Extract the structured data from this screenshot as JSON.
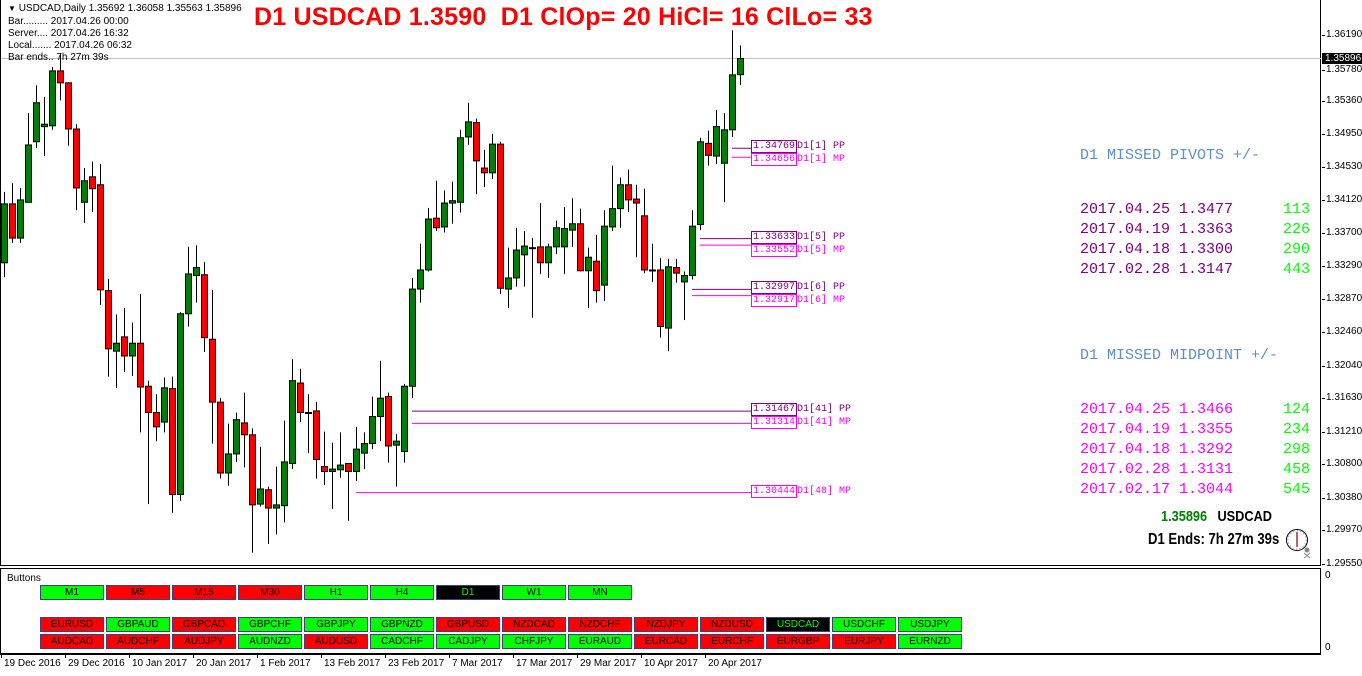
{
  "window": {
    "symbol_line": "USDCAD,Daily  1.35692 1.36058 1.35563 1.35896",
    "info_lines": [
      "Bar......... 2017.04.26 00:00",
      "Server.... 2017.04.26 16:32",
      "Local....... 2017.04.26 06:32",
      "Bar ends.. 7h 27m 39s"
    ]
  },
  "headline": "D1 USDCAD 1.3590  D1 ClOp= 20 HiCl= 16 ClLo= 33",
  "missed_pivots": {
    "header": "D1 MISSED PIVOTS +/-",
    "rows": [
      {
        "date": "2017.04.25",
        "price": "1.3477",
        "diff": "113"
      },
      {
        "date": "2017.04.19",
        "price": "1.3363",
        "diff": "226"
      },
      {
        "date": "2017.04.18",
        "price": "1.3300",
        "diff": "290"
      },
      {
        "date": "2017.02.28",
        "price": "1.3147",
        "diff": "443"
      }
    ]
  },
  "missed_midpoints": {
    "header": "D1 MISSED MIDPOINT +/-",
    "rows": [
      {
        "date": "2017.04.25",
        "price": "1.3466",
        "diff": "124"
      },
      {
        "date": "2017.04.19",
        "price": "1.3355",
        "diff": "234"
      },
      {
        "date": "2017.04.18",
        "price": "1.3292",
        "diff": "298"
      },
      {
        "date": "2017.02.28",
        "price": "1.3131",
        "diff": "458"
      },
      {
        "date": "2017.02.17",
        "price": "1.3044",
        "diff": "545"
      }
    ]
  },
  "bottom_info": {
    "price": "1.35896",
    "symbol": "USDCAD",
    "ends": "D1 Ends: 7h 27m 39s"
  },
  "colors": {
    "bull": "#008000",
    "bear": "#ff0000",
    "pp": "#800080",
    "mp": "#ff00ff",
    "bid_line": "#c0c0c0",
    "title": "#ff0000",
    "price_green": "#008000"
  },
  "subwindow": {
    "title": "Buttons",
    "axis_labels": [
      "0",
      "0"
    ],
    "timeframes": [
      {
        "label": "M1",
        "state": "green"
      },
      {
        "label": "M5",
        "state": "red"
      },
      {
        "label": "M15",
        "state": "red"
      },
      {
        "label": "M30",
        "state": "red"
      },
      {
        "label": "H1",
        "state": "green"
      },
      {
        "label": "H4",
        "state": "green"
      },
      {
        "label": "D1",
        "state": "black"
      },
      {
        "label": "W1",
        "state": "green"
      },
      {
        "label": "MN",
        "state": "green"
      }
    ],
    "pairs_row1": [
      {
        "label": "EURUSD",
        "state": "red"
      },
      {
        "label": "GBPAUD",
        "state": "green"
      },
      {
        "label": "GBPCAD",
        "state": "red"
      },
      {
        "label": "GBPCHF",
        "state": "green"
      },
      {
        "label": "GBPJPY",
        "state": "green"
      },
      {
        "label": "GBPNZD",
        "state": "green"
      },
      {
        "label": "GBPUSD",
        "state": "red"
      },
      {
        "label": "NZDCAD",
        "state": "red"
      },
      {
        "label": "NZDCHF",
        "state": "red"
      },
      {
        "label": "NZDJPY",
        "state": "red"
      },
      {
        "label": "NZDUSD",
        "state": "red"
      },
      {
        "label": "USDCAD",
        "state": "black"
      },
      {
        "label": "USDCHF",
        "state": "green"
      },
      {
        "label": "USDJPY",
        "state": "green"
      }
    ],
    "pairs_row2": [
      {
        "label": "AUDCAD",
        "state": "red"
      },
      {
        "label": "AUDCHF",
        "state": "red"
      },
      {
        "label": "AUDJPY",
        "state": "red"
      },
      {
        "label": "AUDNZD",
        "state": "green"
      },
      {
        "label": "AUDUSD",
        "state": "red"
      },
      {
        "label": "CADCHF",
        "state": "green"
      },
      {
        "label": "CADJPY",
        "state": "green"
      },
      {
        "label": "CHFJPY",
        "state": "green"
      },
      {
        "label": "EURAUD",
        "state": "green"
      },
      {
        "label": "EURCAD",
        "state": "red"
      },
      {
        "label": "EURCHF",
        "state": "red"
      },
      {
        "label": "EURGBP",
        "state": "red"
      },
      {
        "label": "EURJPY",
        "state": "red"
      },
      {
        "label": "EURNZD",
        "state": "green"
      }
    ]
  },
  "chart_data": {
    "type": "candlestick",
    "symbol": "USDCAD",
    "timeframe": "Daily",
    "ylim": [
      1.2951,
      1.3663
    ],
    "grid": false,
    "bid": 1.35896,
    "bid_label": "1.35896",
    "y_ticks": [
      "1.36190",
      "1.35780",
      "1.35360",
      "1.34950",
      "1.34530",
      "1.34120",
      "1.33700",
      "1.33290",
      "1.32870",
      "1.32460",
      "1.32040",
      "1.31630",
      "1.31210",
      "1.30800",
      "1.30380",
      "1.29970",
      "1.29550"
    ],
    "x_ticks": [
      {
        "label": "19 Dec 2016",
        "bar": 0
      },
      {
        "label": "29 Dec 2016",
        "bar": 8
      },
      {
        "label": "10 Jan 2017",
        "bar": 16
      },
      {
        "label": "20 Jan 2017",
        "bar": 24
      },
      {
        "label": "1 Feb 2017",
        "bar": 32
      },
      {
        "label": "13 Feb 2017",
        "bar": 40
      },
      {
        "label": "23 Feb 2017",
        "bar": 48
      },
      {
        "label": "7 Mar 2017",
        "bar": 56
      },
      {
        "label": "17 Mar 2017",
        "bar": 64
      },
      {
        "label": "29 Mar 2017",
        "bar": 72
      },
      {
        "label": "10 Apr 2017",
        "bar": 80
      },
      {
        "label": "20 Apr 2017",
        "bar": 88
      }
    ],
    "ohlc": [
      [
        1.3333,
        1.3422,
        1.3315,
        1.3407
      ],
      [
        1.3407,
        1.3433,
        1.3358,
        1.3364
      ],
      [
        1.3364,
        1.3427,
        1.3358,
        1.3412
      ],
      [
        1.3409,
        1.3521,
        1.3409,
        1.3481
      ],
      [
        1.3485,
        1.3556,
        1.3477,
        1.3534
      ],
      [
        1.3504,
        1.3541,
        1.3467,
        1.3507
      ],
      [
        1.3505,
        1.3579,
        1.35,
        1.3574
      ],
      [
        1.3574,
        1.3596,
        1.3537,
        1.3559
      ],
      [
        1.3559,
        1.356,
        1.348,
        1.3501
      ],
      [
        1.3501,
        1.3507,
        1.3399,
        1.3427
      ],
      [
        1.3409,
        1.3452,
        1.3383,
        1.3436
      ],
      [
        1.3441,
        1.346,
        1.3397,
        1.3426
      ],
      [
        1.3431,
        1.3457,
        1.328,
        1.3299
      ],
      [
        1.3298,
        1.3313,
        1.319,
        1.3225
      ],
      [
        1.3222,
        1.3268,
        1.3176,
        1.3232
      ],
      [
        1.324,
        1.3276,
        1.3196,
        1.3216
      ],
      [
        1.3216,
        1.3258,
        1.3191,
        1.3232
      ],
      [
        1.3232,
        1.3294,
        1.312,
        1.3177
      ],
      [
        1.3178,
        1.3185,
        1.303,
        1.3145
      ],
      [
        1.3145,
        1.3168,
        1.3109,
        1.3127
      ],
      [
        1.3133,
        1.3189,
        1.312,
        1.3176
      ],
      [
        1.3175,
        1.319,
        1.3019,
        1.3042
      ],
      [
        1.3042,
        1.3271,
        1.3034,
        1.3269
      ],
      [
        1.3269,
        1.3353,
        1.3253,
        1.3319
      ],
      [
        1.3317,
        1.3355,
        1.3283,
        1.3327
      ],
      [
        1.3318,
        1.3334,
        1.3221,
        1.3239
      ],
      [
        1.3237,
        1.3299,
        1.3106,
        1.3158
      ],
      [
        1.3158,
        1.3163,
        1.3062,
        1.3069
      ],
      [
        1.3069,
        1.3131,
        1.3053,
        1.3093
      ],
      [
        1.3093,
        1.3145,
        1.3083,
        1.3136
      ],
      [
        1.3132,
        1.317,
        1.3076,
        1.3117
      ],
      [
        1.3117,
        1.3125,
        1.2969,
        1.3029
      ],
      [
        1.303,
        1.3102,
        1.3027,
        1.3049
      ],
      [
        1.3048,
        1.3052,
        1.298,
        1.3025
      ],
      [
        1.3025,
        1.3077,
        1.2992,
        1.3029
      ],
      [
        1.3028,
        1.3135,
        1.3007,
        1.3083
      ],
      [
        1.3081,
        1.3212,
        1.3074,
        1.3185
      ],
      [
        1.3182,
        1.32,
        1.3133,
        1.3145
      ],
      [
        1.3145,
        1.3168,
        1.3094,
        1.3145
      ],
      [
        1.3147,
        1.3158,
        1.3062,
        1.3086
      ],
      [
        1.3077,
        1.3121,
        1.3054,
        1.3071
      ],
      [
        1.3071,
        1.3107,
        1.3024,
        1.3074
      ],
      [
        1.3073,
        1.312,
        1.3063,
        1.3079
      ],
      [
        1.3081,
        1.3081,
        1.3009,
        1.3071
      ],
      [
        1.3071,
        1.3127,
        1.3059,
        1.3099
      ],
      [
        1.3094,
        1.312,
        1.3074,
        1.3106
      ],
      [
        1.3106,
        1.3165,
        1.3099,
        1.314
      ],
      [
        1.314,
        1.321,
        1.3109,
        1.3163
      ],
      [
        1.3165,
        1.317,
        1.3082,
        1.3103
      ],
      [
        1.3104,
        1.3118,
        1.3052,
        1.3109
      ],
      [
        1.3096,
        1.3181,
        1.3082,
        1.3178
      ],
      [
        1.3178,
        1.3314,
        1.3163,
        1.33
      ],
      [
        1.33,
        1.3357,
        1.3283,
        1.3324
      ],
      [
        1.3324,
        1.3402,
        1.3322,
        1.3388
      ],
      [
        1.3389,
        1.3436,
        1.3373,
        1.3377
      ],
      [
        1.3378,
        1.3424,
        1.3371,
        1.3408
      ],
      [
        1.3408,
        1.3435,
        1.3382,
        1.3411
      ],
      [
        1.3409,
        1.35,
        1.3396,
        1.349
      ],
      [
        1.3491,
        1.3534,
        1.3481,
        1.351
      ],
      [
        1.3509,
        1.3514,
        1.3419,
        1.3461
      ],
      [
        1.3452,
        1.3475,
        1.3428,
        1.3446
      ],
      [
        1.3446,
        1.3495,
        1.3438,
        1.3482
      ],
      [
        1.3482,
        1.3485,
        1.3294,
        1.3301
      ],
      [
        1.33,
        1.3352,
        1.3276,
        1.3314
      ],
      [
        1.3314,
        1.3377,
        1.3303,
        1.3349
      ],
      [
        1.3343,
        1.3373,
        1.3303,
        1.3354
      ],
      [
        1.3352,
        1.3364,
        1.3264,
        1.3352
      ],
      [
        1.3353,
        1.3408,
        1.3319,
        1.3333
      ],
      [
        1.3333,
        1.3357,
        1.3314,
        1.3353
      ],
      [
        1.3353,
        1.3386,
        1.3344,
        1.3377
      ],
      [
        1.3353,
        1.3403,
        1.3319,
        1.3376
      ],
      [
        1.3374,
        1.3414,
        1.3353,
        1.3382
      ],
      [
        1.3382,
        1.3401,
        1.3322,
        1.3323
      ],
      [
        1.3323,
        1.3352,
        1.3276,
        1.334
      ],
      [
        1.3335,
        1.3368,
        1.3283,
        1.3298
      ],
      [
        1.3305,
        1.3399,
        1.3285,
        1.3379
      ],
      [
        1.3378,
        1.3455,
        1.3373,
        1.3401
      ],
      [
        1.3401,
        1.344,
        1.3377,
        1.3431
      ],
      [
        1.3431,
        1.345,
        1.3397,
        1.3412
      ],
      [
        1.3413,
        1.3431,
        1.334,
        1.3408
      ],
      [
        1.3392,
        1.3426,
        1.332,
        1.3324
      ],
      [
        1.3324,
        1.3357,
        1.3309,
        1.3324
      ],
      [
        1.3324,
        1.3339,
        1.3239,
        1.3253
      ],
      [
        1.3251,
        1.3338,
        1.3222,
        1.3328
      ],
      [
        1.3327,
        1.3338,
        1.3308,
        1.332
      ],
      [
        1.3309,
        1.3322,
        1.3261,
        1.3317
      ],
      [
        1.3317,
        1.3399,
        1.3312,
        1.3379
      ],
      [
        1.3381,
        1.349,
        1.3374,
        1.3485
      ],
      [
        1.3483,
        1.3499,
        1.3455,
        1.3468
      ],
      [
        1.3467,
        1.3525,
        1.3457,
        1.3504
      ],
      [
        1.3458,
        1.3521,
        1.3409,
        1.35
      ],
      [
        1.35,
        1.3625,
        1.3491,
        1.3569
      ],
      [
        1.35692,
        1.36058,
        1.35563,
        1.35896
      ]
    ],
    "pivot_lines": [
      {
        "value": 1.34769,
        "label": "1.34769",
        "tag": "D1[1] PP",
        "kind": "pp",
        "bars_back": 1
      },
      {
        "value": 1.34656,
        "label": "1.34656",
        "tag": "D1[1] MP",
        "kind": "mp",
        "bars_back": 1
      },
      {
        "value": 1.33633,
        "label": "1.33633",
        "tag": "D1[5] PP",
        "kind": "pp",
        "bars_back": 5
      },
      {
        "value": 1.33552,
        "label": "1.33552",
        "tag": "D1[5] MP",
        "kind": "mp",
        "bars_back": 5
      },
      {
        "value": 1.32997,
        "label": "1.32997",
        "tag": "D1[6] PP",
        "kind": "pp",
        "bars_back": 6
      },
      {
        "value": 1.32917,
        "label": "1.32917",
        "tag": "D1[6] MP",
        "kind": "mp",
        "bars_back": 6
      },
      {
        "value": 1.31467,
        "label": "1.31467",
        "tag": "D1[41] PP",
        "kind": "pp",
        "bars_back": 41
      },
      {
        "value": 1.31314,
        "label": "1.31314",
        "tag": "D1[41] MP",
        "kind": "mp",
        "bars_back": 41
      },
      {
        "value": 1.30444,
        "label": "1.30444",
        "tag": "D1[48] MP",
        "kind": "mp",
        "bars_back": 48
      }
    ]
  }
}
